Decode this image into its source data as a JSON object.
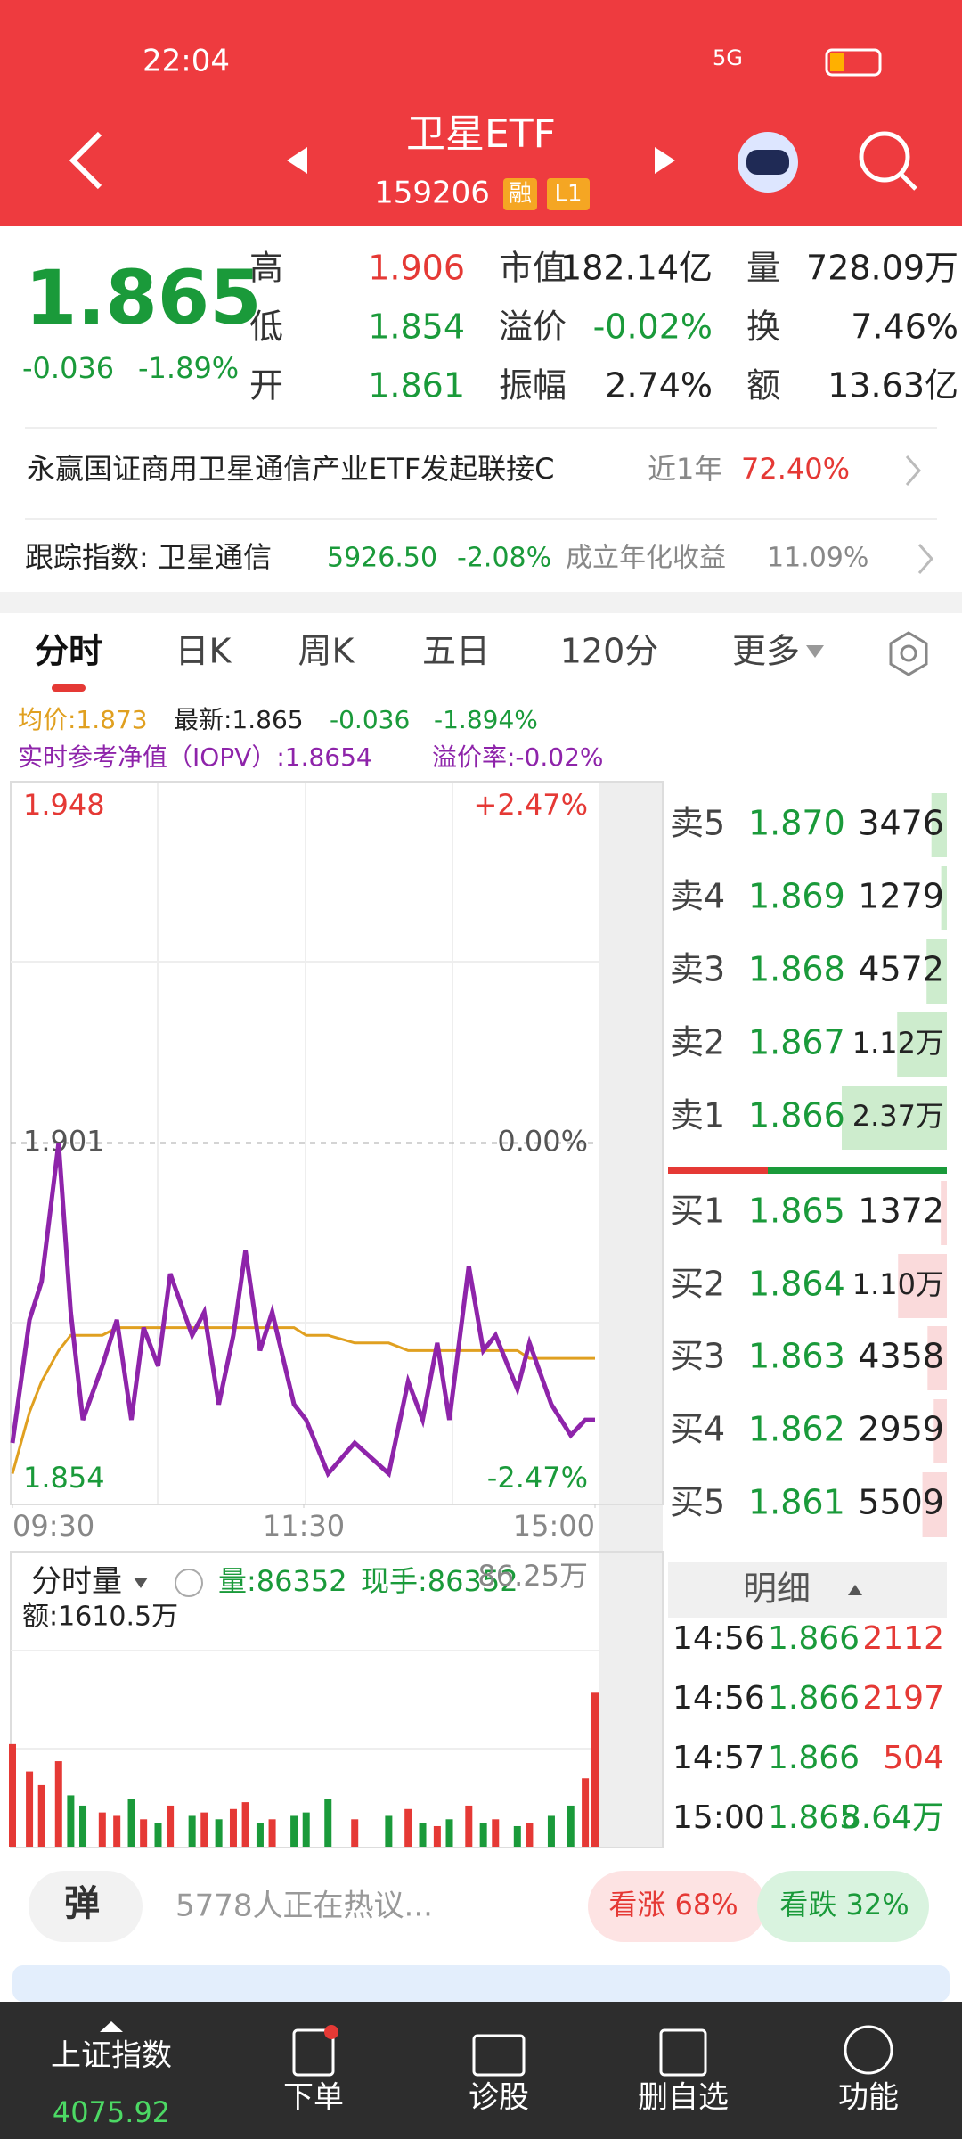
{
  "status": {
    "time": "22:04",
    "network": "5G"
  },
  "header": {
    "title": "卫星ETF",
    "code": "159206",
    "tags": [
      "融",
      "L1"
    ]
  },
  "quote": {
    "price": "1.865",
    "change": "-0.036",
    "change_pct": "-1.89%",
    "stats": [
      [
        "高",
        "1.906"
      ],
      [
        "市值",
        "182.14亿"
      ],
      [
        "量",
        "728.09万"
      ],
      [
        "低",
        "1.854"
      ],
      [
        "溢价",
        "-0.02%"
      ],
      [
        "换",
        "7.46%"
      ],
      [
        "开",
        "1.861"
      ],
      [
        "振幅",
        "2.74%"
      ],
      [
        "额",
        "13.63亿"
      ]
    ]
  },
  "fund": {
    "name": "永赢国证商用卫星通信产业ETF发起联接C",
    "period": "近1年",
    "return": "72.40%"
  },
  "index": {
    "label": "跟踪指数: 卫星通信",
    "value": "5926.50",
    "change": "-2.08%",
    "extra_label": "成立年化收益",
    "extra": "11.09%"
  },
  "tabs": [
    "分时",
    "日K",
    "周K",
    "五日",
    "120分",
    "更多"
  ],
  "info": {
    "avg": "均价:1.873",
    "latest": "最新:1.865",
    "change": "-0.036",
    "pct": "-1.894%",
    "iopv": "实时参考净值（IOPV）:1.8654",
    "premium": "溢价率:-0.02%"
  },
  "chart_data": {
    "type": "line",
    "x": [
      0,
      7,
      12,
      19,
      24,
      29,
      37,
      43,
      49,
      54,
      60,
      65,
      74,
      79,
      85,
      91,
      96,
      102,
      107,
      116,
      121,
      130,
      141,
      155,
      163,
      169,
      175,
      180,
      188,
      194,
      199,
      208,
      213,
      222,
      230,
      236,
      240
    ],
    "series": [
      {
        "color": "#8e24aa",
        "values": [
          1.862,
          1.878,
          1.883,
          1.901,
          1.879,
          1.865,
          1.872,
          1.878,
          1.865,
          1.877,
          1.872,
          1.884,
          1.876,
          1.879,
          1.867,
          1.876,
          1.887,
          1.874,
          1.879,
          1.867,
          1.865,
          1.858,
          1.862,
          1.858,
          1.87,
          1.865,
          1.875,
          1.865,
          1.885,
          1.874,
          1.876,
          1.869,
          1.875,
          1.867,
          1.863,
          1.865,
          1.865
        ]
      },
      {
        "color": "#e0a020",
        "values": [
          1.858,
          1.866,
          1.87,
          1.874,
          1.876,
          1.876,
          1.876,
          1.877,
          1.877,
          1.877,
          1.877,
          1.877,
          1.877,
          1.877,
          1.877,
          1.877,
          1.877,
          1.877,
          1.877,
          1.877,
          1.876,
          1.876,
          1.875,
          1.875,
          1.874,
          1.874,
          1.874,
          1.874,
          1.874,
          1.874,
          1.874,
          1.874,
          1.873,
          1.873,
          1.873,
          1.873,
          1.873
        ]
      }
    ],
    "xlim": [
      0,
      240
    ],
    "xticks": [
      {
        "value": 0,
        "label": "09:30"
      },
      {
        "value": 120,
        "label": "11:30"
      },
      {
        "value": 240,
        "label": "15:00"
      }
    ],
    "ylim": [
      1.854,
      1.948
    ],
    "yticks": [
      1.854,
      1.901,
      1.948
    ],
    "y2lim": [
      -2.47,
      2.47
    ],
    "y2ticks": [
      {
        "value": -2.47,
        "label": "-2.47%"
      },
      {
        "value": 0,
        "label": "0.00%"
      },
      {
        "value": 2.47,
        "label": "+2.47%"
      }
    ]
  },
  "volume": {
    "label": "分时量",
    "vol": "量:86352",
    "hand": "现手:86352",
    "max_label": "86.25万",
    "amount": "额:1610.5万",
    "ylim": [
      0,
      86.25
    ],
    "values": [
      30,
      22,
      18,
      25,
      15,
      12,
      10,
      9,
      14,
      8,
      7,
      12,
      9,
      10,
      8,
      11,
      13,
      7,
      8,
      9,
      10,
      14,
      8,
      9,
      11,
      7,
      6,
      8,
      12,
      7,
      8,
      6,
      7,
      9,
      12,
      20,
      45
    ]
  },
  "orderbook": {
    "sell": {
      "labels": [
        "卖5",
        "卖4",
        "卖3",
        "卖2",
        "卖1"
      ],
      "prices": [
        "1.870",
        "1.869",
        "1.868",
        "1.867",
        "1.866"
      ],
      "volumes": [
        3476,
        1279,
        4572,
        11200,
        23700
      ],
      "value_labels": [
        "3476",
        "1279",
        "4572",
        "1.12万",
        "2.37万"
      ]
    },
    "buy": {
      "labels": [
        "买1",
        "买2",
        "买3",
        "买4",
        "买5"
      ],
      "prices": [
        "1.865",
        "1.864",
        "1.863",
        "1.862",
        "1.861"
      ],
      "volumes": [
        1372,
        11000,
        4358,
        2959,
        5509
      ],
      "value_labels": [
        "1372",
        "1.10万",
        "4358",
        "2959",
        "5509"
      ]
    }
  },
  "detail": {
    "title": "明细",
    "rows": [
      [
        "14:56",
        "1.866",
        "2112"
      ],
      [
        "14:56",
        "1.866",
        "2197"
      ],
      [
        "14:57",
        "1.866",
        "504"
      ],
      [
        "15:00",
        "1.865",
        "8.64万"
      ]
    ]
  },
  "comment": {
    "button": "弹",
    "text": "5778人正在热议...",
    "up": "看涨 68%",
    "down": "看跌 32%"
  },
  "nav": {
    "items": [
      {
        "label": "上证指数",
        "value": "4075.92"
      },
      {
        "label": "下单"
      },
      {
        "label": "诊股"
      },
      {
        "label": "删自选"
      },
      {
        "label": "功能"
      }
    ]
  }
}
